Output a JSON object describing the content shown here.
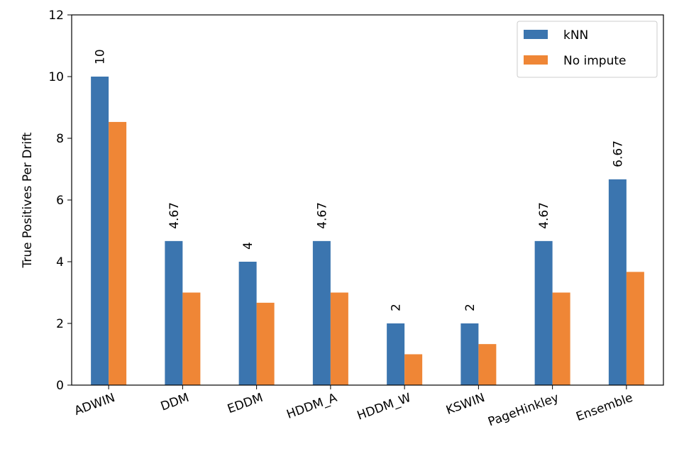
{
  "chart_data": {
    "type": "bar",
    "categories": [
      "ADWIN",
      "DDM",
      "EDDM",
      "HDDM_A",
      "HDDM_W",
      "KSWIN",
      "PageHinkley",
      "Ensemble"
    ],
    "series": [
      {
        "name": "kNN",
        "values": [
          10,
          4.67,
          4,
          4.67,
          2,
          2,
          4.67,
          6.67
        ],
        "color": "#3b75af"
      },
      {
        "name": "No impute",
        "values": [
          8.53,
          3,
          2.67,
          3,
          1,
          1.33,
          3,
          3.67
        ],
        "color": "#ef8636"
      }
    ],
    "data_labels": [
      "10",
      "4.67",
      "4",
      "4.67",
      "2",
      "2",
      "4.67",
      "6.67"
    ],
    "title": "",
    "xlabel": "",
    "ylabel": "True Positives Per Drift",
    "ylim": [
      0,
      12
    ],
    "yticks": [
      0,
      2,
      4,
      6,
      8,
      10,
      12
    ],
    "grid": false,
    "legend_position": "top-right"
  }
}
